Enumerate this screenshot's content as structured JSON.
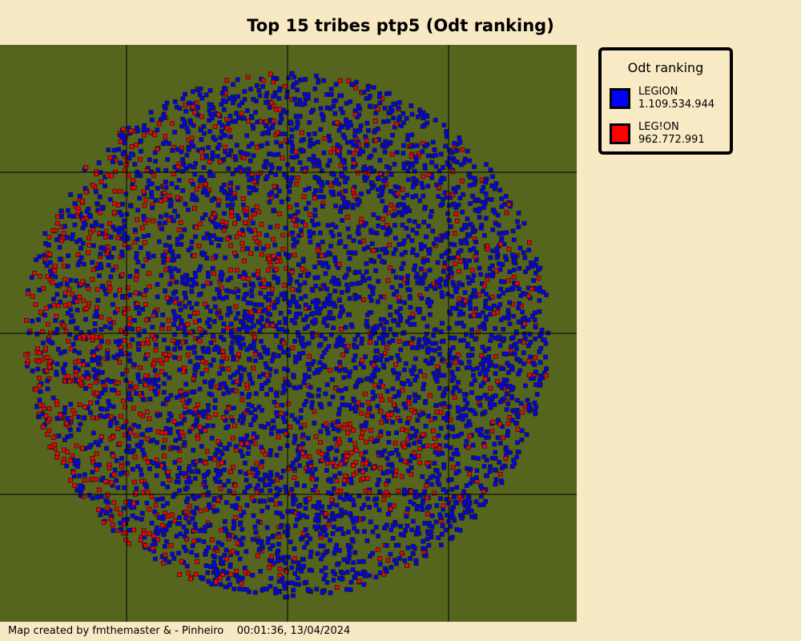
{
  "title": "Top 15 tribes ptp5 (Odt ranking)",
  "legend": {
    "title": "Odt ranking",
    "entries": [
      {
        "name": "LEGION",
        "value": "1.109.534.944",
        "color": "#0000ff"
      },
      {
        "name": "LEG!ON",
        "value": "962.772.991",
        "color": "#ff0000"
      }
    ]
  },
  "footer": {
    "credit": "Map created by fmthemaster & - Pinheiro",
    "timestamp": "00:01:36, 13/04/2024"
  }
}
